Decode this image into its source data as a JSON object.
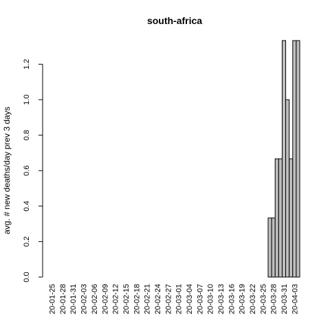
{
  "chart_data": {
    "type": "bar",
    "title": "south-africa",
    "xlabel": "",
    "ylabel": "avg. # new deaths/day prev  3  days",
    "ylim": [
      0,
      1.3333
    ],
    "yticks": [
      0.0,
      0.2,
      0.4,
      0.6,
      0.8,
      1.0,
      1.2
    ],
    "ytick_labels": [
      "0.0",
      "0.2",
      "0.4",
      "0.6",
      "0.8",
      "1.0",
      "1.2"
    ],
    "xtick_labels": [
      "20-01-25",
      "20-01-28",
      "20-01-31",
      "20-02-03",
      "20-02-06",
      "20-02-09",
      "20-02-12",
      "20-02-15",
      "20-02-18",
      "20-02-21",
      "20-02-24",
      "20-02-27",
      "20-03-01",
      "20-03-04",
      "20-03-07",
      "20-03-10",
      "20-03-13",
      "20-03-16",
      "20-03-19",
      "20-03-22",
      "20-03-25",
      "20-03-28",
      "20-03-31",
      "20-04-03"
    ],
    "categories": [
      "20-01-25",
      "20-01-26",
      "20-01-27",
      "20-01-28",
      "20-01-29",
      "20-01-30",
      "20-01-31",
      "20-02-01",
      "20-02-02",
      "20-02-03",
      "20-02-04",
      "20-02-05",
      "20-02-06",
      "20-02-07",
      "20-02-08",
      "20-02-09",
      "20-02-10",
      "20-02-11",
      "20-02-12",
      "20-02-13",
      "20-02-14",
      "20-02-15",
      "20-02-16",
      "20-02-17",
      "20-02-18",
      "20-02-19",
      "20-02-20",
      "20-02-21",
      "20-02-22",
      "20-02-23",
      "20-02-24",
      "20-02-25",
      "20-02-26",
      "20-02-27",
      "20-02-28",
      "20-02-29",
      "20-03-01",
      "20-03-02",
      "20-03-03",
      "20-03-04",
      "20-03-05",
      "20-03-06",
      "20-03-07",
      "20-03-08",
      "20-03-09",
      "20-03-10",
      "20-03-11",
      "20-03-12",
      "20-03-13",
      "20-03-14",
      "20-03-15",
      "20-03-16",
      "20-03-17",
      "20-03-18",
      "20-03-19",
      "20-03-20",
      "20-03-21",
      "20-03-22",
      "20-03-23",
      "20-03-24",
      "20-03-25",
      "20-03-26",
      "20-03-27",
      "20-03-28",
      "20-03-29",
      "20-03-30",
      "20-03-31",
      "20-04-01",
      "20-04-02",
      "20-04-03",
      "20-04-04"
    ],
    "values": [
      0,
      0,
      0,
      0,
      0,
      0,
      0,
      0,
      0,
      0,
      0,
      0,
      0,
      0,
      0,
      0,
      0,
      0,
      0,
      0,
      0,
      0,
      0,
      0,
      0,
      0,
      0,
      0,
      0,
      0,
      0,
      0,
      0,
      0,
      0,
      0,
      0,
      0,
      0,
      0,
      0,
      0,
      0,
      0,
      0,
      0,
      0,
      0,
      0,
      0,
      0,
      0,
      0,
      0,
      0,
      0,
      0,
      0,
      0,
      0,
      0,
      0,
      0.3333,
      0.3333,
      0.6667,
      0.6667,
      1.3333,
      1.0,
      0.6667,
      1.3333,
      1.3333
    ],
    "grid": false,
    "bar_color": "#bebebe"
  }
}
